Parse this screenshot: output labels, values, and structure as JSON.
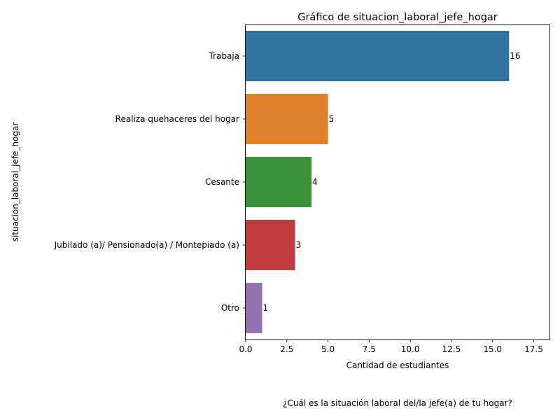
{
  "chart_data": {
    "type": "bar",
    "orientation": "horizontal",
    "title": "Gráfico de situacion_laboral_jefe_hogar",
    "xlabel": "Cantidad de estudiantes",
    "ylabel": "situacion_laboral_jefe_hogar",
    "caption": "¿Cuál es la situación laboral del/la jefe(a) de tu hogar?",
    "categories": [
      "Trabaja",
      "Realiza quehaceres del hogar",
      "Cesante",
      "Jubilado (a)/ Pensionado(a) / Montepiado (a)",
      "Otro"
    ],
    "values": [
      16,
      5,
      4,
      3,
      1
    ],
    "data_labels": [
      "16",
      "5",
      "4",
      "3",
      "1"
    ],
    "colors": [
      "#3274a1",
      "#e1812c",
      "#3a923a",
      "#c03d3e",
      "#9372b2"
    ],
    "xlim": [
      0,
      18.5
    ],
    "xticks": [
      0,
      2.5,
      5,
      7.5,
      10,
      12.5,
      15,
      17.5
    ],
    "xtick_labels": [
      "0.0",
      "2.5",
      "5.0",
      "7.5",
      "10.0",
      "12.5",
      "15.0",
      "17.5"
    ],
    "grid": false,
    "legend": "none"
  }
}
